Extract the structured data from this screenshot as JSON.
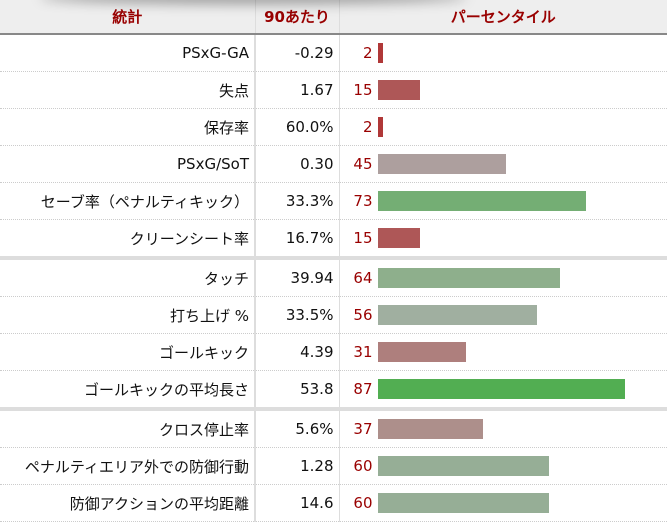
{
  "table": {
    "headers": {
      "stat": "統計",
      "per90": "90あたり",
      "percentile": "パーセンタイル"
    },
    "rows": [
      {
        "stat": "PSxG-GA",
        "per90": "-0.29",
        "percentile": "2",
        "pct_value": 2,
        "color": "#b03838",
        "group_end": false
      },
      {
        "stat": "失点",
        "per90": "1.67",
        "percentile": "15",
        "pct_value": 15,
        "color": "#ae5757",
        "group_end": false
      },
      {
        "stat": "保存率",
        "per90": "60.0%",
        "percentile": "2",
        "pct_value": 2,
        "color": "#b03838",
        "group_end": false
      },
      {
        "stat": "PSxG/SoT",
        "per90": "0.30",
        "percentile": "45",
        "pct_value": 45,
        "color": "#ad9f9e",
        "group_end": false
      },
      {
        "stat": "セーブ率（ペナルティキック）",
        "per90": "33.3%",
        "percentile": "73",
        "pct_value": 73,
        "color": "#74ae74",
        "group_end": false
      },
      {
        "stat": "クリーンシート率",
        "per90": "16.7%",
        "percentile": "15",
        "pct_value": 15,
        "color": "#ae5757",
        "group_end": true
      },
      {
        "stat": "タッチ",
        "per90": "39.94",
        "percentile": "64",
        "pct_value": 64,
        "color": "#8eaf8c",
        "group_end": false
      },
      {
        "stat": "打ち上げ %",
        "per90": "33.5%",
        "percentile": "56",
        "pct_value": 56,
        "color": "#a0afa0",
        "group_end": false
      },
      {
        "stat": "ゴールキック",
        "per90": "4.39",
        "percentile": "31",
        "pct_value": 31,
        "color": "#ae7f7d",
        "group_end": false
      },
      {
        "stat": "ゴールキックの平均長さ",
        "per90": "53.8",
        "percentile": "87",
        "pct_value": 87,
        "color": "#52ae52",
        "group_end": true
      },
      {
        "stat": "クロス停止率",
        "per90": "5.6%",
        "percentile": "37",
        "pct_value": 37,
        "color": "#ad8f8b",
        "group_end": false
      },
      {
        "stat": "ペナルティエリア外での防御行動",
        "per90": "1.28",
        "percentile": "60",
        "pct_value": 60,
        "color": "#96ae96",
        "group_end": false
      },
      {
        "stat": "防御アクションの平均距離",
        "per90": "14.6",
        "percentile": "60",
        "pct_value": 60,
        "color": "#96ae96",
        "group_end": false
      }
    ]
  }
}
